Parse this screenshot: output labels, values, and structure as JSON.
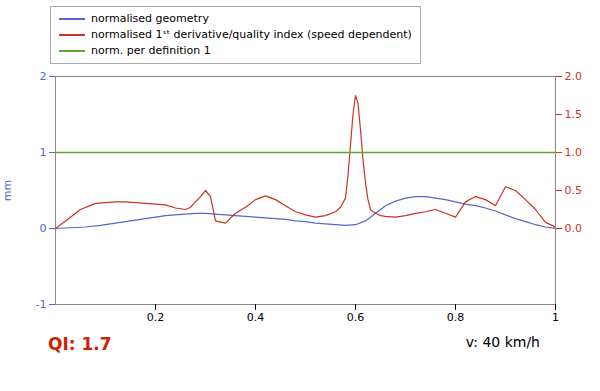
{
  "chart_data": {
    "type": "line",
    "ylabel": "mm",
    "xlim": [
      0.0,
      1.0
    ],
    "xticks": [
      0.2,
      0.4,
      0.6,
      0.8,
      1
    ],
    "ylim": [
      -1.0,
      2.0
    ],
    "yticks": [
      -1,
      0,
      1,
      2
    ],
    "y2lim": [
      -1.0,
      2.0
    ],
    "y2ticks": [
      {
        "value": 0,
        "label": "0.0"
      },
      {
        "value": 0.5,
        "label": "0.5"
      },
      {
        "value": 1.0,
        "label": "1.0"
      },
      {
        "value": 1.5,
        "label": "1.5"
      },
      {
        "value": 2.0,
        "label": "2.0"
      }
    ],
    "legend": "top",
    "series": [
      {
        "name": "normalised geometry",
        "color": "#5566cc",
        "axis": "y",
        "x": [
          0.0,
          0.03,
          0.06,
          0.09,
          0.12,
          0.15,
          0.18,
          0.2,
          0.22,
          0.24,
          0.26,
          0.28,
          0.3,
          0.32,
          0.34,
          0.36,
          0.38,
          0.4,
          0.42,
          0.44,
          0.46,
          0.48,
          0.5,
          0.52,
          0.54,
          0.56,
          0.58,
          0.6,
          0.62,
          0.64,
          0.66,
          0.68,
          0.7,
          0.72,
          0.74,
          0.76,
          0.78,
          0.8,
          0.82,
          0.84,
          0.86,
          0.88,
          0.9,
          0.92,
          0.94,
          0.96,
          0.98,
          1.0
        ],
        "values": [
          0.0,
          0.01,
          0.02,
          0.04,
          0.07,
          0.1,
          0.13,
          0.15,
          0.17,
          0.18,
          0.19,
          0.2,
          0.2,
          0.19,
          0.18,
          0.17,
          0.16,
          0.15,
          0.14,
          0.13,
          0.12,
          0.1,
          0.09,
          0.07,
          0.06,
          0.05,
          0.04,
          0.05,
          0.1,
          0.2,
          0.3,
          0.36,
          0.4,
          0.42,
          0.42,
          0.4,
          0.38,
          0.35,
          0.32,
          0.3,
          0.27,
          0.23,
          0.18,
          0.13,
          0.09,
          0.05,
          0.02,
          0.0
        ]
      },
      {
        "name": "normalised 1ˢᵗ derivative/quality index (speed dependent)",
        "color": "#cc3322",
        "axis": "y2",
        "x": [
          0.0,
          0.02,
          0.05,
          0.08,
          0.1,
          0.12,
          0.14,
          0.16,
          0.18,
          0.2,
          0.22,
          0.24,
          0.26,
          0.27,
          0.28,
          0.29,
          0.3,
          0.31,
          0.32,
          0.34,
          0.36,
          0.38,
          0.4,
          0.42,
          0.44,
          0.46,
          0.48,
          0.5,
          0.52,
          0.54,
          0.56,
          0.57,
          0.58,
          0.585,
          0.59,
          0.595,
          0.6,
          0.605,
          0.61,
          0.615,
          0.62,
          0.625,
          0.63,
          0.64,
          0.65,
          0.66,
          0.68,
          0.7,
          0.72,
          0.74,
          0.76,
          0.78,
          0.8,
          0.82,
          0.84,
          0.86,
          0.88,
          0.9,
          0.92,
          0.94,
          0.96,
          0.98,
          1.0
        ],
        "values": [
          0.0,
          0.1,
          0.25,
          0.33,
          0.34,
          0.35,
          0.35,
          0.34,
          0.33,
          0.32,
          0.31,
          0.27,
          0.25,
          0.28,
          0.35,
          0.42,
          0.5,
          0.42,
          0.1,
          0.07,
          0.2,
          0.28,
          0.38,
          0.43,
          0.38,
          0.3,
          0.22,
          0.18,
          0.15,
          0.17,
          0.22,
          0.28,
          0.4,
          0.7,
          1.1,
          1.5,
          1.75,
          1.65,
          1.3,
          0.9,
          0.6,
          0.38,
          0.25,
          0.2,
          0.17,
          0.16,
          0.15,
          0.17,
          0.2,
          0.22,
          0.25,
          0.2,
          0.15,
          0.35,
          0.42,
          0.38,
          0.3,
          0.55,
          0.5,
          0.38,
          0.25,
          0.08,
          0.02
        ]
      },
      {
        "name": "norm. per definition 1",
        "color": "#55aa33",
        "axis": "y",
        "type": "rule",
        "values": [
          1.0
        ]
      }
    ],
    "annotations": [
      {
        "text": "QI: 1.7",
        "color": "#cc2200"
      },
      {
        "text": "v: 40 km/h",
        "color": "#000000"
      }
    ]
  }
}
